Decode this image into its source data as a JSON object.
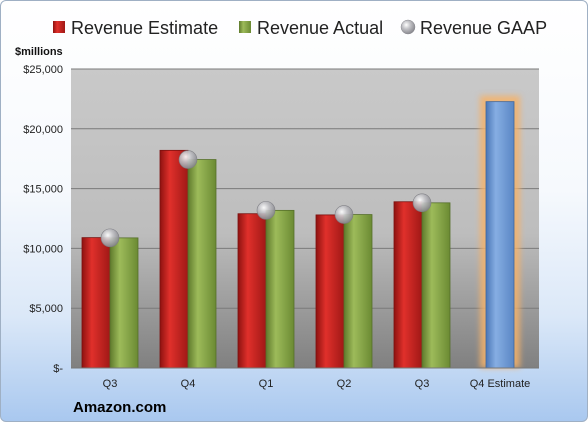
{
  "chart_data": {
    "type": "bar",
    "categories": [
      "Q3",
      "Q4",
      "Q1",
      "Q2",
      "Q3",
      "Q4 Estimate"
    ],
    "series": [
      {
        "name": "Revenue Estimate",
        "color": "#c9211e",
        "values": [
          10900,
          18200,
          12900,
          12800,
          13900,
          null
        ]
      },
      {
        "name": "Revenue Actual",
        "color": "#8aa84a",
        "values": [
          10880,
          17430,
          13180,
          12830,
          13810,
          22270
        ]
      },
      {
        "name": "Revenue GAAP",
        "color": "#a7a7ad",
        "values": [
          10880,
          17430,
          13180,
          12830,
          13810,
          null
        ]
      }
    ],
    "highlight": {
      "category_index": 5,
      "color": "#6f9bd6",
      "glow": "#f5b26b"
    },
    "ylim": [
      0,
      25000
    ],
    "yticks": [
      "$-",
      "$5,000",
      "$10,000",
      "$15,000",
      "$20,000",
      "$25,000"
    ],
    "ytick_values": [
      0,
      5000,
      10000,
      15000,
      20000,
      25000
    ],
    "unit_label": "$millions",
    "legend_position": "top",
    "grid": true,
    "plot_background": "#c8c8c8",
    "source_label": "Amazon.com"
  }
}
